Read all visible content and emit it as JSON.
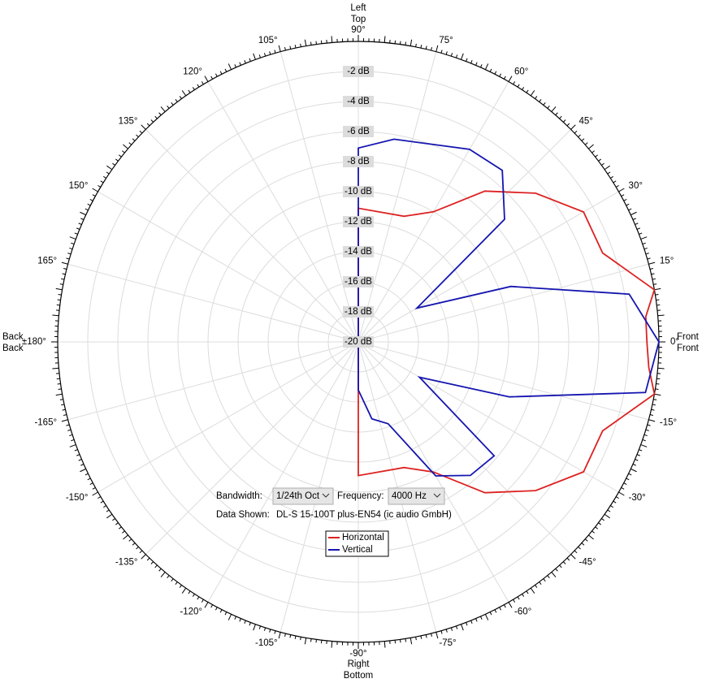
{
  "chart_data": {
    "type": "polar",
    "rlim": [
      -20,
      0
    ],
    "rticks": [
      {
        "value": -2,
        "label": "-2 dB"
      },
      {
        "value": -4,
        "label": "-4 dB"
      },
      {
        "value": -6,
        "label": "-6 dB"
      },
      {
        "value": -8,
        "label": "-8 dB"
      },
      {
        "value": -10,
        "label": "-10 dB"
      },
      {
        "value": -12,
        "label": "-12 dB"
      },
      {
        "value": -14,
        "label": "-14 dB"
      },
      {
        "value": -16,
        "label": "-16 dB"
      },
      {
        "value": -18,
        "label": "-18 dB"
      },
      {
        "value": -20,
        "label": "-20 dB"
      }
    ],
    "thetaticks": [
      {
        "value": 0,
        "label": "0°"
      },
      {
        "value": 15,
        "label": "15°"
      },
      {
        "value": 30,
        "label": "30°"
      },
      {
        "value": 45,
        "label": "45°"
      },
      {
        "value": 60,
        "label": "60°"
      },
      {
        "value": 75,
        "label": "75°"
      },
      {
        "value": 90,
        "label": "90°"
      },
      {
        "value": 105,
        "label": "105°"
      },
      {
        "value": 120,
        "label": "120°"
      },
      {
        "value": 135,
        "label": "135°"
      },
      {
        "value": 150,
        "label": "150°"
      },
      {
        "value": 165,
        "label": "165°"
      },
      {
        "value": 180,
        "label": "±180°"
      },
      {
        "value": -165,
        "label": "-165°"
      },
      {
        "value": -150,
        "label": "-150°"
      },
      {
        "value": -135,
        "label": "-135°"
      },
      {
        "value": -120,
        "label": "-120°"
      },
      {
        "value": -105,
        "label": "-105°"
      },
      {
        "value": -90,
        "label": "-90°"
      },
      {
        "value": -75,
        "label": "-75°"
      },
      {
        "value": -60,
        "label": "-60°"
      },
      {
        "value": -45,
        "label": "-45°"
      },
      {
        "value": -30,
        "label": "-30°"
      },
      {
        "value": -15,
        "label": "-15°"
      }
    ],
    "grid": true,
    "series": [
      {
        "name": "Horizontal",
        "color": "#dd2222",
        "direction_labels": {
          "top": "Left",
          "right": "Front",
          "bottom": "Right",
          "left": "Back"
        },
        "theta": [
          180,
          -90,
          -70,
          -60,
          -50,
          -40,
          -30,
          -20,
          -10,
          -5,
          0,
          5,
          10,
          20,
          30,
          40,
          50,
          60,
          70,
          90
        ],
        "values": [
          -20,
          -11.1,
          -11.1,
          -10,
          -6.9,
          -4.6,
          -2.7,
          -2.7,
          0,
          -0.6,
          -0.8,
          -0.8,
          0,
          -2.7,
          -2.7,
          -4.6,
          -6.9,
          -10,
          -11.1,
          -11.1
        ]
      },
      {
        "name": "Vertical",
        "color": "#1515b0",
        "direction_labels": {
          "top": "Top",
          "right": "Front",
          "bottom": "Bottom",
          "left": "Back"
        },
        "theta": [
          180,
          -90,
          -80,
          -70,
          -60,
          -50,
          -40,
          -30,
          -20,
          -10,
          0,
          10,
          20,
          30,
          40,
          50,
          60,
          80,
          90
        ],
        "values": [
          -20,
          -16.8,
          -14.8,
          -14.2,
          -9.7,
          -8.4,
          -8.2,
          -15.3,
          -9.3,
          -0.6,
          0,
          -1.7,
          -9.2,
          -15.5,
          -7.3,
          -5.1,
          -5.2,
          -6.3,
          -7.1
        ]
      }
    ]
  },
  "controls": {
    "bandwidth_label": "Bandwidth:",
    "bandwidth": "1/24th Oct",
    "frequency_label": "Frequency:",
    "frequency": "4000 Hz",
    "data_shown_label": "Data Shown:",
    "data_shown": "DL-S 15-100T plus-EN54 (ic audio GmbH)"
  }
}
